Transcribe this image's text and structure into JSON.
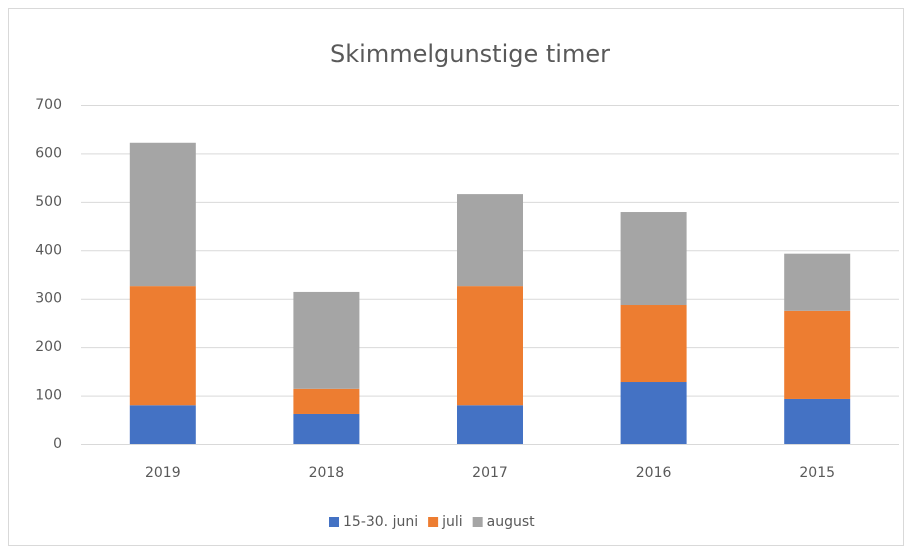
{
  "chart_data": {
    "type": "stacked_bar",
    "title": "Skimmelgunstige timer",
    "categories": [
      "2019",
      "2018",
      "2017",
      "2016",
      "2015"
    ],
    "series": [
      {
        "name": "15-30. juni",
        "color": "#4472c4",
        "values": [
          80,
          62,
          80,
          128,
          93
        ]
      },
      {
        "name": "juli",
        "color": "#ed7d31",
        "values": [
          246,
          52,
          246,
          159,
          182
        ]
      },
      {
        "name": "august",
        "color": "#a5a5a5",
        "values": [
          296,
          200,
          190,
          192,
          118
        ]
      }
    ],
    "ylim": [
      0,
      700
    ],
    "yticks": [
      0,
      100,
      200,
      300,
      400,
      500,
      600,
      700
    ],
    "grid": true,
    "legend": "bottom"
  }
}
